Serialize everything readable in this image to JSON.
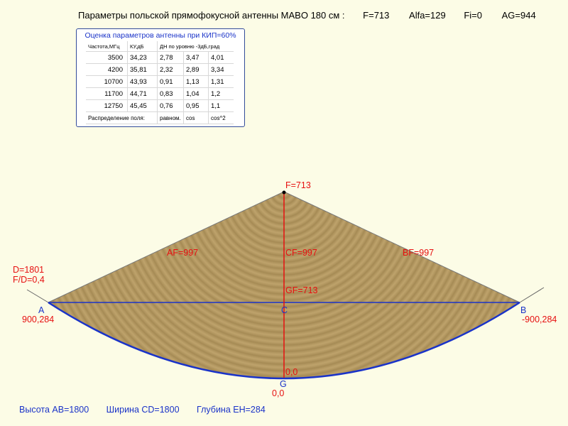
{
  "title": {
    "text": "Параметры  польской прямофокусной антенны MABO 180 см :",
    "f": "F=713",
    "alfa": "Alfa=129",
    "fi": "Fi=0",
    "ag": "AG=944"
  },
  "table": {
    "title": "Оценка параметров антенны при КИП=60%",
    "headers": [
      "Частота,МГц",
      "КУ,дБ",
      "ДН по уровню -3дБ,град"
    ],
    "rows": [
      [
        "3500",
        "34,23",
        "2,78",
        "3,47",
        "4,01"
      ],
      [
        "4200",
        "35,81",
        "2,32",
        "2,89",
        "3,34"
      ],
      [
        "10700",
        "43,93",
        "0,91",
        "1,13",
        "1,31"
      ],
      [
        "11700",
        "44,71",
        "0,83",
        "1,04",
        "1,2"
      ],
      [
        "12750",
        "45,45",
        "0,76",
        "0,95",
        "1,1"
      ]
    ],
    "footer": {
      "label": "Распределение поля:",
      "values": [
        "равном.",
        "cos",
        "cos^2"
      ]
    }
  },
  "labels": {
    "f": "F=713",
    "af": "AF=997",
    "cf": "CF=997",
    "bf": "BF=997",
    "gf": "GF=713",
    "d": "D=1801",
    "fd": "F/D=0,4",
    "a": "A",
    "a_coord": "900,284",
    "b": "B",
    "b_coord": "-900,284",
    "c": "C",
    "g": "G",
    "g_val": "0,0",
    "g_coord": "0,0"
  },
  "footer": {
    "height": "Высота AB=1800",
    "width": "Ширина CD=1800",
    "depth": "Глубина EH=284"
  },
  "colors": {
    "background": "#fcfce6",
    "dish_fill": "#b89a5e",
    "red": "#e61010",
    "blue": "#1a33c8"
  }
}
